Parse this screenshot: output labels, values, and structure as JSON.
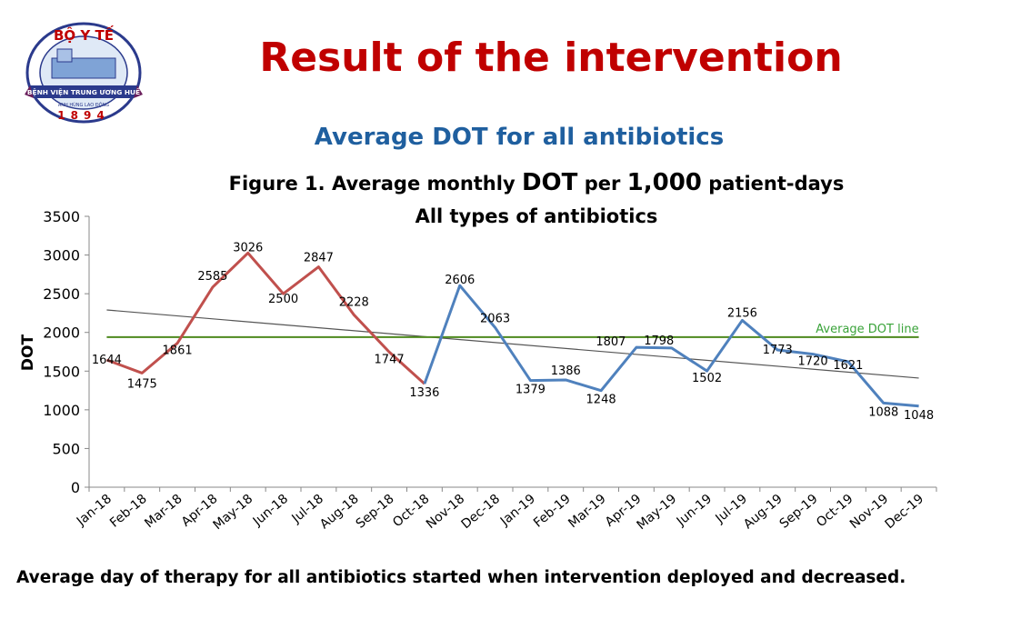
{
  "header": {
    "title": "Result of the intervention",
    "subtitle": "Average DOT for all antibiotics"
  },
  "logo": {
    "top_text": "BỘ Y TẾ",
    "banner_text": "BỆNH VIỆN TRUNG ƯƠNG HUẾ",
    "sub_text": "ANH HÙNG LAO ĐỘNG",
    "year": "1894"
  },
  "chart_data": {
    "type": "line",
    "title_line1_pre": "Figure 1. Average monthly ",
    "title_line1_big1": "DOT",
    "title_line1_mid": " per ",
    "title_line1_big2": "1,000",
    "title_line1_post": " patient-days",
    "title_line2": "All types of antibiotics",
    "ylabel": "DOT",
    "ylim": [
      0,
      3500
    ],
    "yticks": [
      "0",
      "500",
      "1000",
      "1500",
      "2000",
      "2500",
      "3000",
      "3500"
    ],
    "categories": [
      "Jan-18",
      "Feb-18",
      "Mar-18",
      "Apr-18",
      "May-18",
      "Jun-18",
      "Jul-18",
      "Aug-18",
      "Sep-18",
      "Oct-18",
      "Nov-18",
      "Dec-18",
      "Jan-19",
      "Feb-19",
      "Mar-19",
      "Apr-19",
      "May-19",
      "Jun-19",
      "Jul-19",
      "Aug-19",
      "Sep-19",
      "Oct-19",
      "Nov-19",
      "Dec-19"
    ],
    "values": [
      1644,
      1475,
      1861,
      2585,
      3026,
      2500,
      2847,
      2228,
      1747,
      1336,
      2606,
      2063,
      1379,
      1386,
      1248,
      1807,
      1798,
      1502,
      2156,
      1773,
      1720,
      1621,
      1088,
      1048
    ],
    "pre_color": "#c0504d",
    "post_color": "#4f81bd",
    "average_line": {
      "label": "Average DOT line",
      "value": 1940,
      "color": "#4e8a1e"
    },
    "trend_line": {
      "start": 2290,
      "end": 1410,
      "color": "#555555"
    },
    "grid": false
  },
  "footer": "Average day of therapy for all antibiotics started when intervention deployed and decreased."
}
